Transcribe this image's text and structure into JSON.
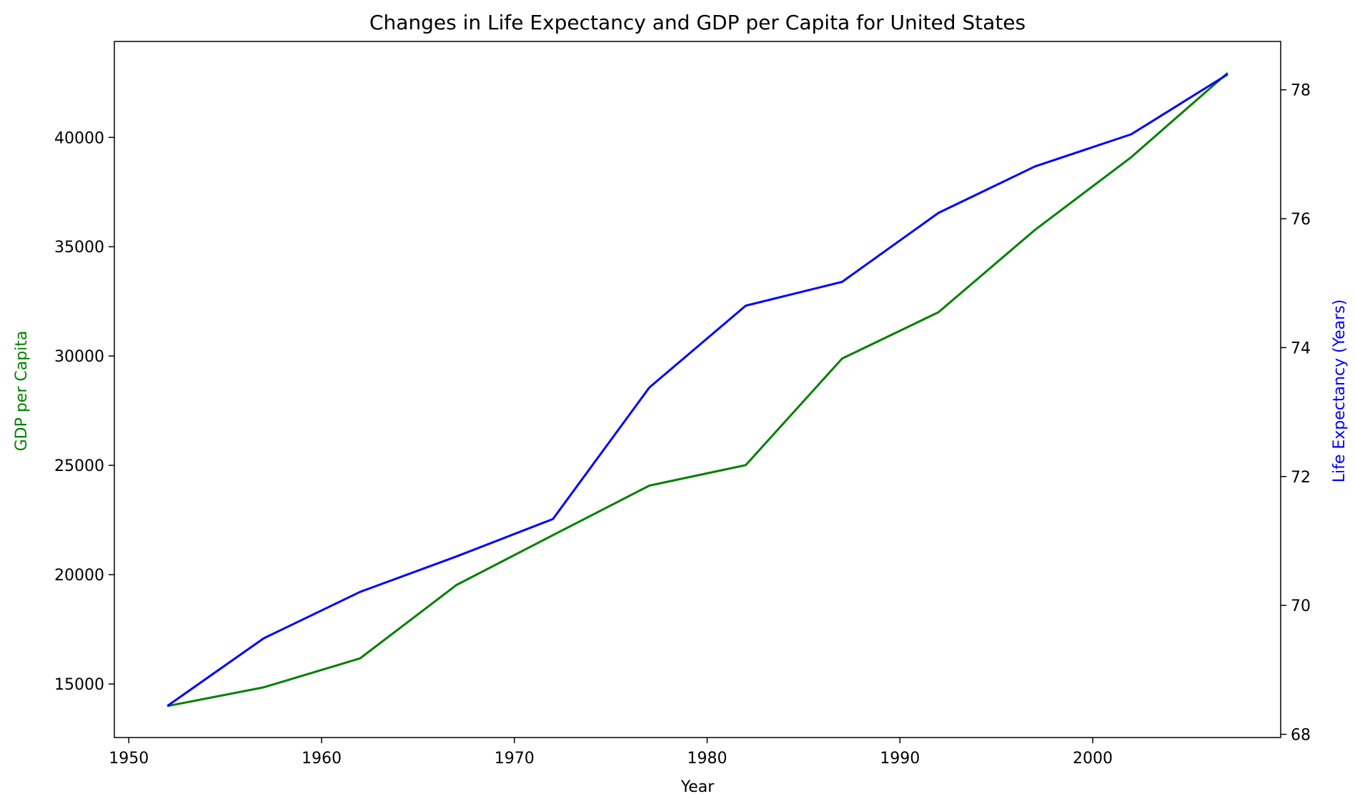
{
  "colors": {
    "gdp": "#008000",
    "life": "#0000ff",
    "axis": "#000000",
    "background": "#ffffff"
  },
  "chart_data": {
    "type": "line",
    "title": "Changes in Life Expectancy and GDP per Capita for United States",
    "xlabel": "Year",
    "ylabel_left": "GDP per Capita",
    "ylabel_right": "Life Expectancy (Years)",
    "x": [
      1952,
      1957,
      1962,
      1967,
      1972,
      1977,
      1982,
      1987,
      1992,
      1997,
      2002,
      2007
    ],
    "xlim": [
      1949.25,
      2009.75
    ],
    "ylim_left": [
      12550,
      44390
    ],
    "ylim_right": [
      67.95,
      78.75
    ],
    "xticks": [
      1950,
      1960,
      1970,
      1980,
      1990,
      2000
    ],
    "yticks_left": [
      15000,
      20000,
      25000,
      30000,
      35000,
      40000
    ],
    "yticks_right": [
      68,
      70,
      72,
      74,
      76,
      78
    ],
    "grid": false,
    "series": [
      {
        "axis": "left",
        "color": "#008000",
        "values": [
          13990,
          14847,
          16173,
          19530,
          21806,
          24073,
          25010,
          29884,
          32004,
          35767,
          39097,
          42952
        ]
      },
      {
        "axis": "right",
        "color": "#0000ff",
        "values": [
          68.44,
          69.49,
          70.21,
          70.76,
          71.34,
          73.38,
          74.65,
          75.02,
          76.09,
          76.81,
          77.31,
          78.24
        ]
      }
    ]
  }
}
